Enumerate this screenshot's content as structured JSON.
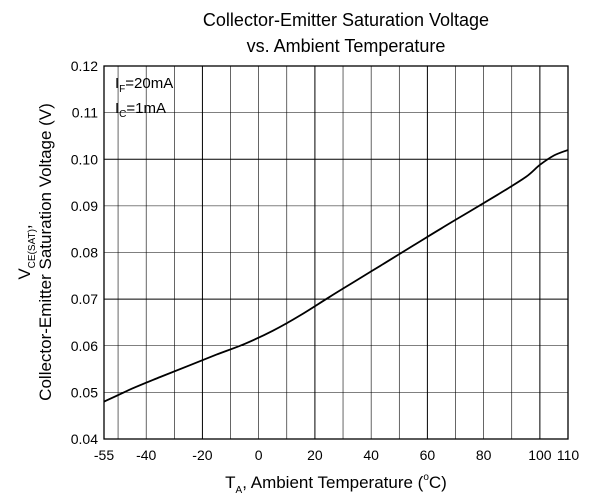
{
  "chart_data": {
    "type": "line",
    "title_line1": "Collector-Emitter Saturation Voltage",
    "title_line2": "vs. Ambient Temperature",
    "xlabel": {
      "main": "T",
      "sub": "A",
      "rest": ", Ambient Temperature (",
      "degree": "o",
      "unit_end": "C)"
    },
    "ylabel": {
      "line1_main": "V",
      "line1_sub": "CE(SAT)",
      "line1_end": ",",
      "line2": "Collector-Emitter Saturation Voltage (V)"
    },
    "conditions": [
      {
        "main": "I",
        "sub": "F",
        "value": "=20mA"
      },
      {
        "main": "I",
        "sub": "C",
        "value": "=1mA"
      }
    ],
    "xlim": [
      -55,
      110
    ],
    "ylim": [
      0.04,
      0.12
    ],
    "x_ticks": [
      {
        "value": -55,
        "label": "-55"
      },
      {
        "value": -40,
        "label": "-40"
      },
      {
        "value": -20,
        "label": "-20"
      },
      {
        "value": 0,
        "label": "0"
      },
      {
        "value": 20,
        "label": "20"
      },
      {
        "value": 40,
        "label": "40"
      },
      {
        "value": 60,
        "label": "60"
      },
      {
        "value": 80,
        "label": "80"
      },
      {
        "value": 100,
        "label": "100"
      },
      {
        "value": 110,
        "label": "110"
      }
    ],
    "y_ticks": [
      {
        "value": 0.04,
        "label": "0.04"
      },
      {
        "value": 0.05,
        "label": "0.05"
      },
      {
        "value": 0.06,
        "label": "0.06"
      },
      {
        "value": 0.07,
        "label": "0.07"
      },
      {
        "value": 0.08,
        "label": "0.08"
      },
      {
        "value": 0.09,
        "label": "0.09"
      },
      {
        "value": 0.1,
        "label": "0.10"
      },
      {
        "value": 0.11,
        "label": "0.11"
      },
      {
        "value": 0.12,
        "label": "0.12"
      }
    ],
    "x_minor_grid": [
      -50,
      -40,
      -30,
      -20,
      -10,
      0,
      10,
      20,
      30,
      40,
      50,
      60,
      70,
      80,
      90,
      100
    ],
    "x_major_grid": [
      -20,
      20,
      60,
      100
    ],
    "y_major_grid": [
      0.07,
      0.1
    ],
    "grid": true,
    "series": [
      {
        "x": [
          -55,
          -45,
          -35,
          -25,
          -15,
          -5,
          5,
          15,
          25,
          35,
          45,
          55,
          65,
          75,
          85,
          95,
          100,
          105,
          110
        ],
        "y": [
          0.048,
          0.0508,
          0.0533,
          0.0557,
          0.0581,
          0.0604,
          0.0632,
          0.0666,
          0.0704,
          0.0741,
          0.0778,
          0.0815,
          0.0852,
          0.0888,
          0.0924,
          0.0962,
          0.0988,
          0.1008,
          0.102
        ]
      }
    ]
  }
}
